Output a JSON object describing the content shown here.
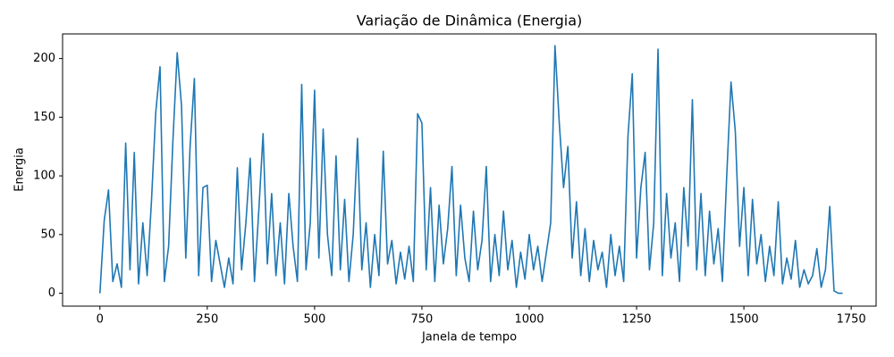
{
  "chart_data": {
    "type": "line",
    "title": "Variação de Dinâmica (Energia)",
    "x_label": "Janela de tempo",
    "y_label": "Energia",
    "x": [
      0,
      10,
      20,
      30,
      40,
      50,
      60,
      70,
      80,
      90,
      100,
      110,
      120,
      130,
      140,
      150,
      160,
      170,
      180,
      190,
      200,
      210,
      220,
      230,
      240,
      250,
      260,
      270,
      280,
      290,
      300,
      310,
      320,
      330,
      340,
      350,
      360,
      370,
      380,
      390,
      400,
      410,
      420,
      430,
      440,
      450,
      460,
      470,
      480,
      490,
      500,
      510,
      520,
      530,
      540,
      550,
      560,
      570,
      580,
      590,
      600,
      610,
      620,
      630,
      640,
      650,
      660,
      670,
      680,
      690,
      700,
      710,
      720,
      730,
      740,
      750,
      760,
      770,
      780,
      790,
      800,
      810,
      820,
      830,
      840,
      850,
      860,
      870,
      880,
      890,
      900,
      910,
      920,
      930,
      940,
      950,
      960,
      970,
      980,
      990,
      1000,
      1010,
      1020,
      1030,
      1040,
      1050,
      1060,
      1070,
      1080,
      1090,
      1100,
      1110,
      1120,
      1130,
      1140,
      1150,
      1160,
      1170,
      1180,
      1190,
      1200,
      1210,
      1220,
      1230,
      1240,
      1250,
      1260,
      1270,
      1280,
      1290,
      1300,
      1310,
      1320,
      1330,
      1340,
      1350,
      1360,
      1370,
      1380,
      1390,
      1400,
      1410,
      1420,
      1430,
      1440,
      1450,
      1460,
      1470,
      1480,
      1490,
      1500,
      1510,
      1520,
      1530,
      1540,
      1550,
      1560,
      1570,
      1580,
      1590,
      1600,
      1610,
      1620,
      1630,
      1640,
      1650,
      1660,
      1670,
      1680,
      1690,
      1700,
      1710,
      1720,
      1730
    ],
    "series": [
      {
        "name": "Energia",
        "color": "#1f77b4",
        "values": [
          0,
          62,
          88,
          10,
          25,
          5,
          128,
          20,
          120,
          8,
          60,
          15,
          78,
          154,
          193,
          10,
          40,
          130,
          205,
          160,
          30,
          125,
          183,
          15,
          90,
          92,
          10,
          45,
          25,
          5,
          30,
          8,
          107,
          20,
          60,
          115,
          10,
          70,
          136,
          25,
          85,
          15,
          60,
          8,
          85,
          40,
          10,
          178,
          20,
          60,
          173,
          30,
          140,
          50,
          15,
          117,
          20,
          80,
          10,
          50,
          132,
          20,
          60,
          5,
          50,
          15,
          121,
          25,
          45,
          8,
          35,
          12,
          40,
          10,
          153,
          145,
          20,
          90,
          10,
          75,
          25,
          55,
          108,
          15,
          75,
          30,
          10,
          70,
          20,
          45,
          108,
          10,
          50,
          15,
          70,
          20,
          45,
          5,
          35,
          12,
          50,
          20,
          40,
          10,
          35,
          60,
          211,
          145,
          90,
          125,
          30,
          78,
          15,
          55,
          10,
          45,
          20,
          35,
          5,
          50,
          15,
          40,
          10,
          134,
          187,
          30,
          90,
          120,
          20,
          60,
          208,
          15,
          85,
          30,
          60,
          10,
          90,
          40,
          165,
          20,
          85,
          15,
          70,
          25,
          55,
          10,
          100,
          180,
          138,
          40,
          90,
          15,
          80,
          25,
          50,
          10,
          40,
          15,
          78,
          8,
          30,
          12,
          45,
          5,
          20,
          8,
          15,
          38,
          5,
          20,
          74,
          2,
          0,
          0
        ]
      }
    ],
    "xlim": [
      -87,
      1808
    ],
    "ylim": [
      -11,
      221
    ],
    "xticks": [
      0,
      250,
      500,
      750,
      1000,
      1250,
      1500,
      1750
    ],
    "yticks": [
      0,
      50,
      100,
      150,
      200
    ]
  }
}
